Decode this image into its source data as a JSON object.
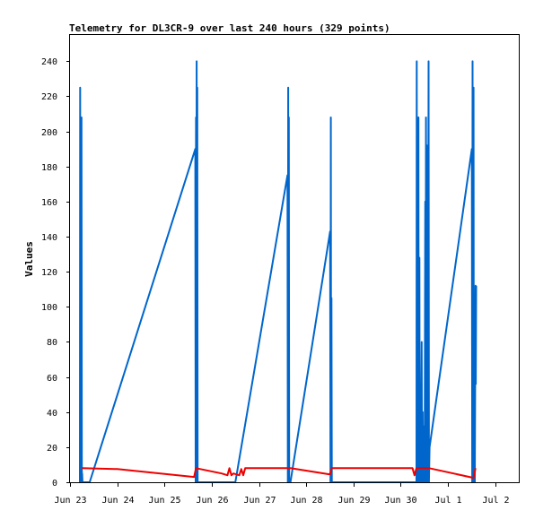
{
  "chart_data": {
    "type": "line",
    "title": "Telemetry for DL3CR-9 over last 240 hours (329 points)",
    "xlabel": "",
    "ylabel": "Values",
    "ylim": [
      0,
      255
    ],
    "yticks": [
      0,
      20,
      40,
      60,
      80,
      100,
      120,
      140,
      160,
      180,
      200,
      220,
      240
    ],
    "xlim": [
      "2023-06-23 00:00",
      "2023-07-02 12:00"
    ],
    "xticks": [
      {
        "t": "2023-06-23 00:00",
        "label": "Jun 23"
      },
      {
        "t": "2023-06-24 00:00",
        "label": "Jun 24"
      },
      {
        "t": "2023-06-25 00:00",
        "label": "Jun 25"
      },
      {
        "t": "2023-06-26 00:00",
        "label": "Jun 26"
      },
      {
        "t": "2023-06-27 00:00",
        "label": "Jun 27"
      },
      {
        "t": "2023-06-28 00:00",
        "label": "Jun 28"
      },
      {
        "t": "2023-06-29 00:00",
        "label": "Jun 29"
      },
      {
        "t": "2023-06-30 00:00",
        "label": "Jun 30"
      },
      {
        "t": "2023-07-01 00:00",
        "label": "Jul 1"
      },
      {
        "t": "2023-07-02 00:00",
        "label": "Jul 2"
      }
    ],
    "grid": false,
    "colors": {
      "blue": "#0066cc",
      "red": "#ee0000"
    },
    "series": [
      {
        "color": "#0066cc",
        "points": [
          [
            "2023-06-23 05:00",
            0
          ],
          [
            "2023-06-23 05:10",
            225
          ],
          [
            "2023-06-23 05:20",
            0
          ],
          [
            "2023-06-23 05:30",
            208
          ],
          [
            "2023-06-23 05:40",
            0
          ],
          [
            "2023-06-23 05:50",
            208
          ],
          [
            "2023-06-23 06:00",
            0
          ],
          [
            "2023-06-23 06:10",
            5
          ],
          [
            "2023-06-23 06:20",
            0
          ],
          [
            "2023-06-23 10:00",
            0
          ],
          [
            "2023-06-25 15:40",
            190
          ],
          [
            "2023-06-25 15:50",
            0
          ],
          [
            "2023-06-25 16:00",
            208
          ],
          [
            "2023-06-25 16:10",
            0
          ],
          [
            "2023-06-25 16:20",
            240
          ],
          [
            "2023-06-25 16:30",
            0
          ],
          [
            "2023-06-25 16:40",
            225
          ],
          [
            "2023-06-25 16:50",
            0
          ],
          [
            "2023-06-26 12:00",
            0
          ],
          [
            "2023-06-27 14:30",
            175
          ],
          [
            "2023-06-27 14:40",
            0
          ],
          [
            "2023-06-27 14:50",
            225
          ],
          [
            "2023-06-27 15:00",
            0
          ],
          [
            "2023-06-27 15:10",
            208
          ],
          [
            "2023-06-27 15:20",
            0
          ],
          [
            "2023-06-27 16:00",
            0
          ],
          [
            "2023-06-28 12:10",
            143
          ],
          [
            "2023-06-28 12:20",
            0
          ],
          [
            "2023-06-28 12:30",
            208
          ],
          [
            "2023-06-28 12:40",
            0
          ],
          [
            "2023-06-28 12:50",
            105
          ],
          [
            "2023-06-28 13:00",
            0
          ],
          [
            "2023-06-30 08:00",
            0
          ],
          [
            "2023-06-30 08:10",
            240
          ],
          [
            "2023-06-30 08:20",
            0
          ],
          [
            "2023-06-30 08:30",
            145
          ],
          [
            "2023-06-30 08:40",
            0
          ],
          [
            "2023-06-30 09:00",
            208
          ],
          [
            "2023-06-30 09:10",
            0
          ],
          [
            "2023-06-30 09:30",
            128
          ],
          [
            "2023-06-30 09:40",
            0
          ],
          [
            "2023-06-30 10:00",
            48
          ],
          [
            "2023-06-30 10:10",
            0
          ],
          [
            "2023-06-30 10:40",
            80
          ],
          [
            "2023-06-30 10:50",
            0
          ],
          [
            "2023-06-30 11:10",
            40
          ],
          [
            "2023-06-30 11:20",
            0
          ],
          [
            "2023-06-30 12:00",
            32
          ],
          [
            "2023-06-30 12:10",
            0
          ],
          [
            "2023-06-30 12:30",
            160
          ],
          [
            "2023-06-30 12:40",
            0
          ],
          [
            "2023-06-30 12:50",
            208
          ],
          [
            "2023-06-30 13:00",
            0
          ],
          [
            "2023-06-30 13:20",
            192
          ],
          [
            "2023-06-30 13:30",
            0
          ],
          [
            "2023-06-30 13:40",
            145
          ],
          [
            "2023-06-30 13:50",
            0
          ],
          [
            "2023-06-30 14:10",
            240
          ],
          [
            "2023-06-30 14:20",
            0
          ],
          [
            "2023-06-30 14:40",
            20
          ],
          [
            "2023-07-01 12:10",
            190
          ],
          [
            "2023-07-01 12:20",
            0
          ],
          [
            "2023-07-01 12:30",
            240
          ],
          [
            "2023-07-01 12:40",
            0
          ],
          [
            "2023-07-01 13:00",
            225
          ],
          [
            "2023-07-01 13:10",
            0
          ],
          [
            "2023-07-01 13:30",
            105
          ],
          [
            "2023-07-01 13:40",
            0
          ],
          [
            "2023-07-01 14:00",
            112
          ],
          [
            "2023-07-01 14:10",
            56
          ],
          [
            "2023-07-01 14:20",
            112
          ]
        ]
      },
      {
        "color": "#ee0000",
        "points": [
          [
            "2023-06-23 06:00",
            8
          ],
          [
            "2023-06-24 00:00",
            7.5
          ],
          [
            "2023-06-25 15:00",
            3
          ],
          [
            "2023-06-25 16:00",
            8
          ],
          [
            "2023-06-26 05:00",
            5
          ],
          [
            "2023-06-26 08:00",
            4
          ],
          [
            "2023-06-26 09:00",
            8
          ],
          [
            "2023-06-26 10:00",
            4
          ],
          [
            "2023-06-26 11:00",
            5
          ],
          [
            "2023-06-26 14:00",
            4
          ],
          [
            "2023-06-26 15:00",
            7.5
          ],
          [
            "2023-06-26 16:00",
            4
          ],
          [
            "2023-06-26 17:00",
            8
          ],
          [
            "2023-06-27 12:00",
            8
          ],
          [
            "2023-06-27 16:00",
            8
          ],
          [
            "2023-06-28 12:00",
            4.5
          ],
          [
            "2023-06-28 13:00",
            8
          ],
          [
            "2023-06-30 06:00",
            8
          ],
          [
            "2023-06-30 07:00",
            4
          ],
          [
            "2023-06-30 08:00",
            8
          ],
          [
            "2023-06-30 14:30",
            8
          ],
          [
            "2023-07-01 13:00",
            2.5
          ],
          [
            "2023-07-01 14:00",
            8
          ]
        ]
      }
    ]
  }
}
